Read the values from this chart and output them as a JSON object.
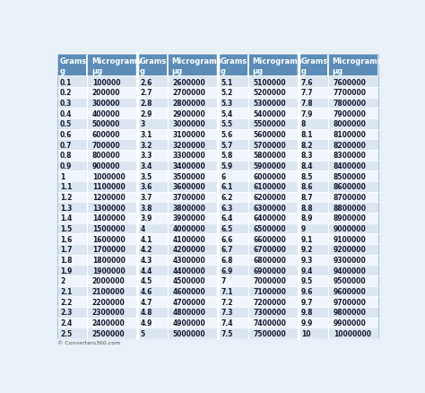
{
  "header_bg": "#5b8db8",
  "header_text_color": "#ffffff",
  "row_bg_odd": "#dce6f1",
  "row_bg_even": "#f0f5fb",
  "outer_bg": "#e8f0f8",
  "divider_color": "#ffffff",
  "cell_border_color": "#ffffff",
  "footer_text": "© Converters360.com",
  "col_headers_line1": [
    "Grams",
    "Micrograms",
    "Grams",
    "Micrograms",
    "Grams",
    "Micrograms",
    "Grams",
    "Micrograms"
  ],
  "col_headers_line2": [
    "g",
    "µg",
    "g",
    "µg",
    "g",
    "µg",
    "g",
    "µg"
  ],
  "data": [
    [
      "0.1",
      "100000",
      "2.6",
      "2600000",
      "5.1",
      "5100000",
      "7.6",
      "7600000"
    ],
    [
      "0.2",
      "200000",
      "2.7",
      "2700000",
      "5.2",
      "5200000",
      "7.7",
      "7700000"
    ],
    [
      "0.3",
      "300000",
      "2.8",
      "2800000",
      "5.3",
      "5300000",
      "7.8",
      "7800000"
    ],
    [
      "0.4",
      "400000",
      "2.9",
      "2900000",
      "5.4",
      "5400000",
      "7.9",
      "7900000"
    ],
    [
      "0.5",
      "500000",
      "3",
      "3000000",
      "5.5",
      "5500000",
      "8",
      "8000000"
    ],
    [
      "0.6",
      "600000",
      "3.1",
      "3100000",
      "5.6",
      "5600000",
      "8.1",
      "8100000"
    ],
    [
      "0.7",
      "700000",
      "3.2",
      "3200000",
      "5.7",
      "5700000",
      "8.2",
      "8200000"
    ],
    [
      "0.8",
      "800000",
      "3.3",
      "3300000",
      "5.8",
      "5800000",
      "8.3",
      "8300000"
    ],
    [
      "0.9",
      "900000",
      "3.4",
      "3400000",
      "5.9",
      "5900000",
      "8.4",
      "8400000"
    ],
    [
      "1",
      "1000000",
      "3.5",
      "3500000",
      "6",
      "6000000",
      "8.5",
      "8500000"
    ],
    [
      "1.1",
      "1100000",
      "3.6",
      "3600000",
      "6.1",
      "6100000",
      "8.6",
      "8600000"
    ],
    [
      "1.2",
      "1200000",
      "3.7",
      "3700000",
      "6.2",
      "6200000",
      "8.7",
      "8700000"
    ],
    [
      "1.3",
      "1300000",
      "3.8",
      "3800000",
      "6.3",
      "6300000",
      "8.8",
      "8800000"
    ],
    [
      "1.4",
      "1400000",
      "3.9",
      "3900000",
      "6.4",
      "6400000",
      "8.9",
      "8900000"
    ],
    [
      "1.5",
      "1500000",
      "4",
      "4000000",
      "6.5",
      "6500000",
      "9",
      "9000000"
    ],
    [
      "1.6",
      "1600000",
      "4.1",
      "4100000",
      "6.6",
      "6600000",
      "9.1",
      "9100000"
    ],
    [
      "1.7",
      "1700000",
      "4.2",
      "4200000",
      "6.7",
      "6700000",
      "9.2",
      "9200000"
    ],
    [
      "1.8",
      "1800000",
      "4.3",
      "4300000",
      "6.8",
      "6800000",
      "9.3",
      "9300000"
    ],
    [
      "1.9",
      "1900000",
      "4.4",
      "4400000",
      "6.9",
      "6900000",
      "9.4",
      "9400000"
    ],
    [
      "2",
      "2000000",
      "4.5",
      "4500000",
      "7",
      "7000000",
      "9.5",
      "9500000"
    ],
    [
      "2.1",
      "2100000",
      "4.6",
      "4600000",
      "7.1",
      "7100000",
      "9.6",
      "9600000"
    ],
    [
      "2.2",
      "2200000",
      "4.7",
      "4700000",
      "7.2",
      "7200000",
      "9.7",
      "9700000"
    ],
    [
      "2.3",
      "2300000",
      "4.8",
      "4800000",
      "7.3",
      "7300000",
      "9.8",
      "9800000"
    ],
    [
      "2.4",
      "2400000",
      "4.9",
      "4900000",
      "7.4",
      "7400000",
      "9.9",
      "9900000"
    ],
    [
      "2.5",
      "2500000",
      "5",
      "5000000",
      "7.5",
      "7500000",
      "10",
      "10000000"
    ]
  ],
  "col_widths_rel": [
    0.75,
    1.25,
    0.75,
    1.25,
    0.75,
    1.25,
    0.75,
    1.25
  ],
  "group_divider_cols": [
    2,
    4,
    6
  ],
  "text_color": "#1a1a2e",
  "font_size_header": 6.0,
  "font_size_data": 5.5
}
